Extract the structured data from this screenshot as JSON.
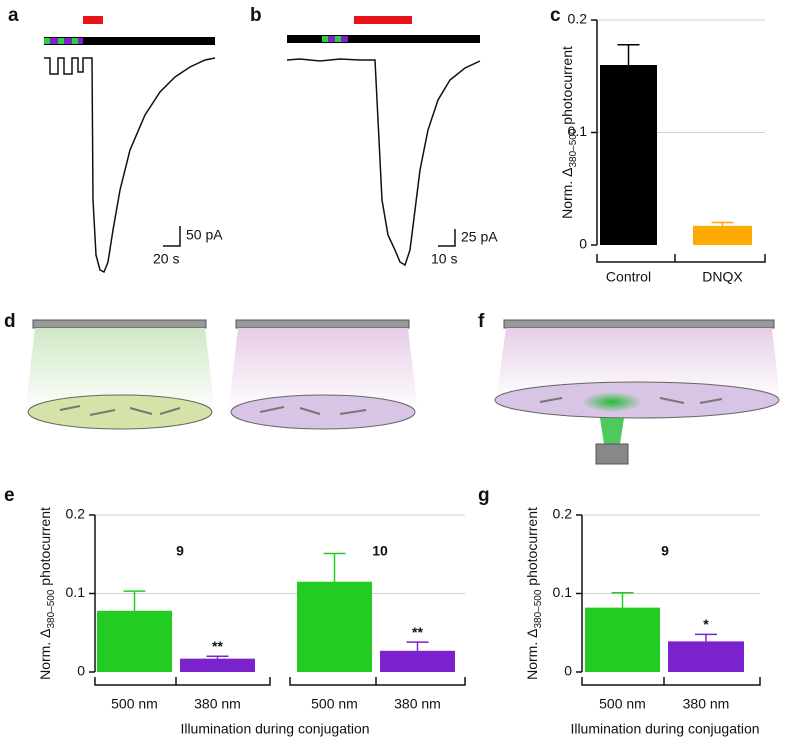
{
  "panels": [
    "a",
    "b",
    "c",
    "d",
    "e",
    "f",
    "g"
  ],
  "scale_bars": [
    {
      "vertical": "50 pA",
      "horizontal": "20 s"
    },
    {
      "vertical": "25 pA",
      "horizontal": "10 s"
    }
  ],
  "chart_data": [
    {
      "type": "bar",
      "ylabel": {
        "text": "Norm. Δ",
        "sub": "380–500",
        "after": " photocurrent"
      },
      "categories": [
        "Control",
        "DNQX"
      ],
      "values": [
        0.16,
        0.017
      ],
      "errors": [
        0.018,
        0.003
      ],
      "colors": [
        "#000000",
        "#ffaa00"
      ],
      "ylim": [
        0,
        0.2
      ],
      "yticks": [
        0,
        0.1,
        0.2
      ],
      "grid": true
    },
    {
      "type": "bar",
      "ylabel": {
        "text": "Norm. Δ",
        "sub": "380–500",
        "after": " photocurrent"
      },
      "xlabel": "Illumination during conjugation",
      "categories": [
        "500 nm",
        "380 nm"
      ],
      "values": [
        0.078,
        0.017
      ],
      "errors": [
        0.025,
        0.003
      ],
      "colors": [
        "#22cc22",
        "#7a22cc"
      ],
      "ylim": [
        0,
        0.2
      ],
      "yticks": [
        0,
        0.1,
        0.2
      ],
      "grid": true,
      "n_label": "9",
      "significance": "**"
    },
    {
      "type": "bar",
      "categories": [
        "500 nm",
        "380 nm"
      ],
      "values": [
        0.115,
        0.027
      ],
      "errors": [
        0.036,
        0.011
      ],
      "colors": [
        "#22cc22",
        "#7a22cc"
      ],
      "ylim": [
        0,
        0.2
      ],
      "n_label": "10",
      "significance": "**"
    },
    {
      "type": "bar",
      "ylabel": {
        "text": "Norm. Δ",
        "sub": "380–500",
        "after": " photocurrent"
      },
      "xlabel": "Illumination during conjugation",
      "categories": [
        "500 nm",
        "380 nm"
      ],
      "values": [
        0.082,
        0.039
      ],
      "errors": [
        0.019,
        0.009
      ],
      "colors": [
        "#22cc22",
        "#7a22cc"
      ],
      "ylim": [
        0,
        0.2
      ],
      "yticks": [
        0,
        0.1,
        0.2
      ],
      "grid": true,
      "n_label": "9",
      "significance": "*"
    }
  ]
}
